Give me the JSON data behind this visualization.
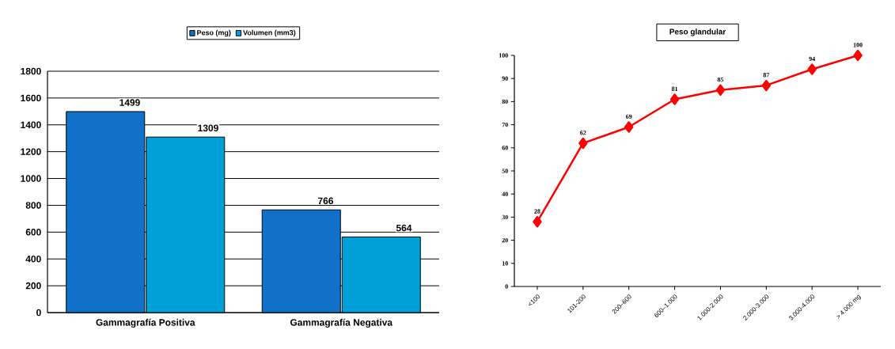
{
  "chart_data": [
    {
      "type": "bar",
      "categories": [
        "Gammagrafía Positiva",
        "Gammagrafía Negativa"
      ],
      "series": [
        {
          "name": "Peso (mg)",
          "color": "#1170c8",
          "values": [
            1499,
            766
          ]
        },
        {
          "name": "Volumen (mm3)",
          "color": "#00a0d8",
          "values": [
            1309,
            564
          ]
        }
      ],
      "ylim": [
        0,
        1800
      ],
      "yticks": [
        0,
        200,
        400,
        600,
        800,
        1000,
        1200,
        1400,
        1600,
        1800
      ],
      "grid": "y",
      "legend": "top",
      "data_labels": true
    },
    {
      "type": "line",
      "title": "Peso glandular",
      "categories": [
        "<100",
        "101-200",
        "200–600",
        "600–1.000",
        "1.000-2.000",
        "2.000-3.000",
        "3.000-4.000",
        "> 4.000 mg"
      ],
      "values": [
        28,
        62,
        69,
        81,
        85,
        87,
        94,
        100
      ],
      "color": "#ff0000",
      "marker": "diamond",
      "ylim": [
        0,
        100
      ],
      "yticks": [
        0,
        10,
        20,
        30,
        40,
        50,
        60,
        70,
        80,
        90,
        100
      ],
      "data_labels": true
    }
  ]
}
